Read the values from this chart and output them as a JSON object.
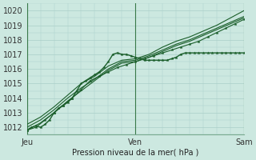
{
  "xlabel": "Pression niveau de la mer( hPa )",
  "ylim": [
    1011.5,
    1020.5
  ],
  "xlim": [
    0,
    48
  ],
  "yticks": [
    1012,
    1013,
    1014,
    1015,
    1016,
    1017,
    1018,
    1019,
    1020
  ],
  "xtick_labels": [
    "Jeu",
    "Ven",
    "Sam"
  ],
  "xtick_positions": [
    0,
    24,
    48
  ],
  "vlines": [
    0,
    24,
    48
  ],
  "background_color": "#cce8e0",
  "grid_color": "#aacfc8",
  "line_color": "#1a5e2a",
  "series": [
    {
      "x": [
        0,
        1,
        2,
        3,
        4,
        5,
        6,
        7,
        8,
        9,
        10,
        11,
        12,
        13,
        14,
        15,
        16,
        17,
        18,
        19,
        20,
        21,
        22,
        23,
        24,
        25,
        26,
        27,
        28,
        29,
        30,
        31,
        32,
        33,
        34,
        35,
        36,
        37,
        38,
        39,
        40,
        41,
        42,
        43,
        44,
        45,
        46,
        47,
        48
      ],
      "y": [
        1011.8,
        1012.0,
        1012.1,
        1012.0,
        1012.2,
        1012.5,
        1013.0,
        1013.3,
        1013.5,
        1013.7,
        1014.0,
        1014.5,
        1015.0,
        1015.2,
        1015.4,
        1015.6,
        1015.8,
        1016.1,
        1016.5,
        1017.0,
        1017.1,
        1017.0,
        1017.0,
        1016.9,
        1016.8,
        1016.7,
        1016.6,
        1016.6,
        1016.6,
        1016.6,
        1016.6,
        1016.6,
        1016.7,
        1016.8,
        1017.0,
        1017.1,
        1017.1,
        1017.1,
        1017.1,
        1017.1,
        1017.1,
        1017.1,
        1017.1,
        1017.1,
        1017.1,
        1017.1,
        1017.1,
        1017.1,
        1017.1
      ],
      "marker": true,
      "linewidth": 1.0
    },
    {
      "x": [
        0,
        3,
        6,
        9,
        12,
        15,
        18,
        21,
        24,
        27,
        30,
        33,
        36,
        39,
        42,
        45,
        48
      ],
      "y": [
        1011.8,
        1012.3,
        1013.0,
        1013.8,
        1014.5,
        1015.2,
        1015.9,
        1016.4,
        1016.5,
        1016.8,
        1017.2,
        1017.6,
        1017.9,
        1018.3,
        1018.7,
        1019.1,
        1019.5
      ],
      "marker": false,
      "linewidth": 0.8
    },
    {
      "x": [
        0,
        3,
        6,
        9,
        12,
        15,
        18,
        21,
        24,
        27,
        30,
        33,
        36,
        39,
        42,
        45,
        48
      ],
      "y": [
        1012.0,
        1012.5,
        1013.2,
        1014.0,
        1014.7,
        1015.3,
        1016.0,
        1016.5,
        1016.6,
        1016.9,
        1017.3,
        1017.7,
        1018.0,
        1018.4,
        1018.8,
        1019.2,
        1019.6
      ],
      "marker": false,
      "linewidth": 0.8
    },
    {
      "x": [
        0,
        3,
        6,
        9,
        12,
        15,
        18,
        21,
        24,
        27,
        30,
        33,
        36,
        39,
        42,
        45,
        48
      ],
      "y": [
        1012.2,
        1012.7,
        1013.4,
        1014.2,
        1015.0,
        1015.5,
        1016.2,
        1016.6,
        1016.7,
        1017.0,
        1017.5,
        1017.9,
        1018.2,
        1018.6,
        1019.0,
        1019.5,
        1020.0
      ],
      "marker": false,
      "linewidth": 0.8
    },
    {
      "x": [
        0,
        2,
        4,
        6,
        8,
        10,
        12,
        14,
        16,
        18,
        20,
        22,
        24,
        26,
        28,
        30,
        32,
        34,
        36,
        38,
        40,
        42,
        44,
        46,
        48
      ],
      "y": [
        1011.8,
        1012.0,
        1012.5,
        1013.0,
        1013.5,
        1014.0,
        1014.6,
        1015.2,
        1015.5,
        1015.8,
        1016.1,
        1016.3,
        1016.5,
        1016.7,
        1016.9,
        1017.1,
        1017.3,
        1017.5,
        1017.7,
        1017.9,
        1018.2,
        1018.5,
        1018.8,
        1019.1,
        1019.4
      ],
      "marker": true,
      "linewidth": 0.8
    }
  ]
}
